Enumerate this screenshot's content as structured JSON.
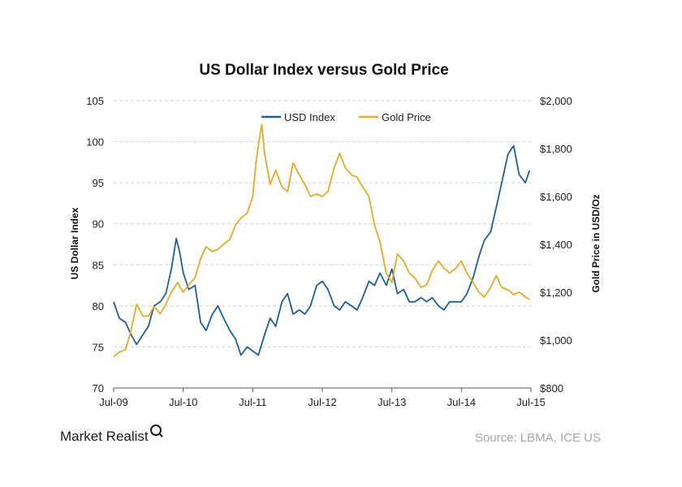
{
  "chart_data": {
    "type": "line",
    "title": "US Dollar Index versus Gold Price",
    "ylabel_left": "US Dollar Index",
    "ylabel_right": "Gold Price in USD/Oz",
    "ylim_left": [
      70,
      105
    ],
    "ylim_right": [
      800,
      2000
    ],
    "yticks_left": [
      "70",
      "75",
      "80",
      "85",
      "90",
      "95",
      "100",
      "105"
    ],
    "yticks_right": [
      "$800",
      "$1,000",
      "$1,200",
      "$1,400",
      "$1,600",
      "$1,800",
      "$2,000"
    ],
    "x_ticks": [
      "Jul-09",
      "Jul-10",
      "Jul-11",
      "Jul-12",
      "Jul-13",
      "Jul-14",
      "Jul-15"
    ],
    "xlim": [
      2009.5,
      2015.5
    ],
    "grid": true,
    "legend_position": "top-center",
    "series": [
      {
        "name": "USD Index",
        "axis": "left",
        "color": "#1f5f95",
        "x": [
          2009.5,
          2009.58,
          2009.67,
          2009.75,
          2009.83,
          2009.92,
          2010.0,
          2010.08,
          2010.17,
          2010.25,
          2010.33,
          2010.4,
          2010.45,
          2010.5,
          2010.58,
          2010.67,
          2010.75,
          2010.83,
          2010.92,
          2011.0,
          2011.08,
          2011.17,
          2011.25,
          2011.33,
          2011.42,
          2011.5,
          2011.58,
          2011.67,
          2011.75,
          2011.83,
          2011.92,
          2012.0,
          2012.08,
          2012.17,
          2012.25,
          2012.33,
          2012.42,
          2012.5,
          2012.58,
          2012.67,
          2012.75,
          2012.83,
          2012.92,
          2013.0,
          2013.08,
          2013.17,
          2013.25,
          2013.33,
          2013.42,
          2013.5,
          2013.58,
          2013.67,
          2013.75,
          2013.83,
          2013.92,
          2014.0,
          2014.08,
          2014.17,
          2014.25,
          2014.33,
          2014.42,
          2014.5,
          2014.58,
          2014.67,
          2014.75,
          2014.83,
          2014.92,
          2015.0,
          2015.08,
          2015.17,
          2015.25,
          2015.33,
          2015.42,
          2015.48
        ],
        "y": [
          80.5,
          78.5,
          78,
          76.5,
          75.3,
          76.5,
          77.5,
          80,
          80.5,
          81.5,
          84.5,
          88.2,
          86.5,
          84,
          82,
          82.5,
          78,
          77,
          79,
          80,
          78.5,
          77,
          76,
          74,
          75,
          74.5,
          74,
          76.5,
          78.5,
          77.5,
          80.5,
          81.5,
          79,
          79.5,
          79,
          80,
          82.5,
          83,
          82,
          80,
          79.5,
          80.5,
          80,
          79.5,
          81,
          83,
          82.5,
          84,
          82.5,
          84.5,
          81.5,
          82,
          80.5,
          80.5,
          81,
          80.5,
          81,
          80,
          79.5,
          80.5,
          80.5,
          80.5,
          81.5,
          83.5,
          86,
          88,
          89,
          92,
          95,
          98.5,
          99.5,
          96,
          95,
          96.5
        ]
      },
      {
        "name": "Gold Price",
        "axis": "right",
        "color": "#e0ac2b",
        "x": [
          2009.5,
          2009.58,
          2009.67,
          2009.75,
          2009.83,
          2009.92,
          2010.0,
          2010.08,
          2010.17,
          2010.25,
          2010.33,
          2010.42,
          2010.5,
          2010.58,
          2010.67,
          2010.75,
          2010.83,
          2010.92,
          2011.0,
          2011.08,
          2011.17,
          2011.25,
          2011.33,
          2011.42,
          2011.5,
          2011.55,
          2011.6,
          2011.63,
          2011.67,
          2011.75,
          2011.83,
          2011.92,
          2012.0,
          2012.08,
          2012.17,
          2012.25,
          2012.33,
          2012.42,
          2012.5,
          2012.58,
          2012.67,
          2012.75,
          2012.83,
          2012.92,
          2013.0,
          2013.08,
          2013.17,
          2013.25,
          2013.33,
          2013.42,
          2013.5,
          2013.58,
          2013.67,
          2013.75,
          2013.83,
          2013.92,
          2014.0,
          2014.08,
          2014.17,
          2014.25,
          2014.33,
          2014.42,
          2014.5,
          2014.58,
          2014.67,
          2014.75,
          2014.83,
          2014.92,
          2015.0,
          2015.08,
          2015.17,
          2015.25,
          2015.33,
          2015.42,
          2015.48
        ],
        "y": [
          930,
          950,
          960,
          1040,
          1150,
          1100,
          1100,
          1140,
          1110,
          1150,
          1200,
          1240,
          1200,
          1230,
          1260,
          1340,
          1390,
          1370,
          1380,
          1400,
          1420,
          1480,
          1510,
          1530,
          1600,
          1750,
          1850,
          1900,
          1780,
          1650,
          1710,
          1640,
          1620,
          1740,
          1690,
          1650,
          1600,
          1610,
          1600,
          1620,
          1720,
          1780,
          1720,
          1690,
          1680,
          1640,
          1600,
          1480,
          1410,
          1280,
          1240,
          1360,
          1330,
          1280,
          1260,
          1220,
          1230,
          1290,
          1330,
          1300,
          1280,
          1300,
          1330,
          1280,
          1240,
          1200,
          1180,
          1220,
          1270,
          1220,
          1210,
          1190,
          1200,
          1180,
          1170
        ]
      }
    ]
  },
  "footer": {
    "brand": "Market Realist",
    "source": "Source: LBMA, ICE US"
  }
}
